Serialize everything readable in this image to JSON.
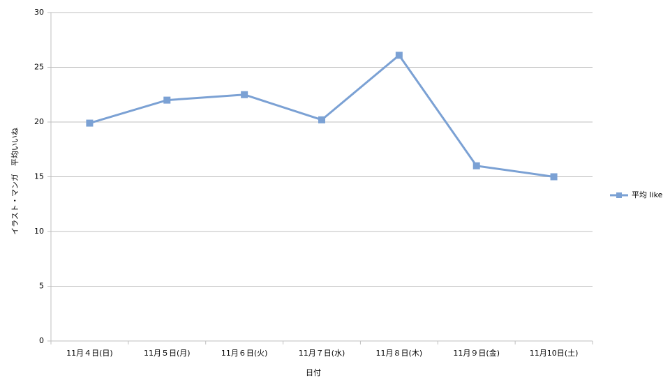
{
  "chart_data": {
    "type": "line",
    "y_label": "イラスト・マンガ　平均いいね",
    "x_label": "日付",
    "categories": [
      "11月４日(日)",
      "11月５日(月)",
      "11月６日(火)",
      "11月７日(水)",
      "11月８日(木)",
      "11月９日(金)",
      "11月10日(土)"
    ],
    "series": [
      {
        "name": "平均 like",
        "color": "#7ba1d4",
        "values": [
          19.9,
          22.0,
          22.5,
          20.2,
          26.1,
          16.0,
          15.0
        ]
      }
    ],
    "ylim": [
      0,
      30
    ],
    "yticks": [
      0,
      5,
      10,
      15,
      20,
      25,
      30
    ],
    "grid": true,
    "legend": "right"
  }
}
